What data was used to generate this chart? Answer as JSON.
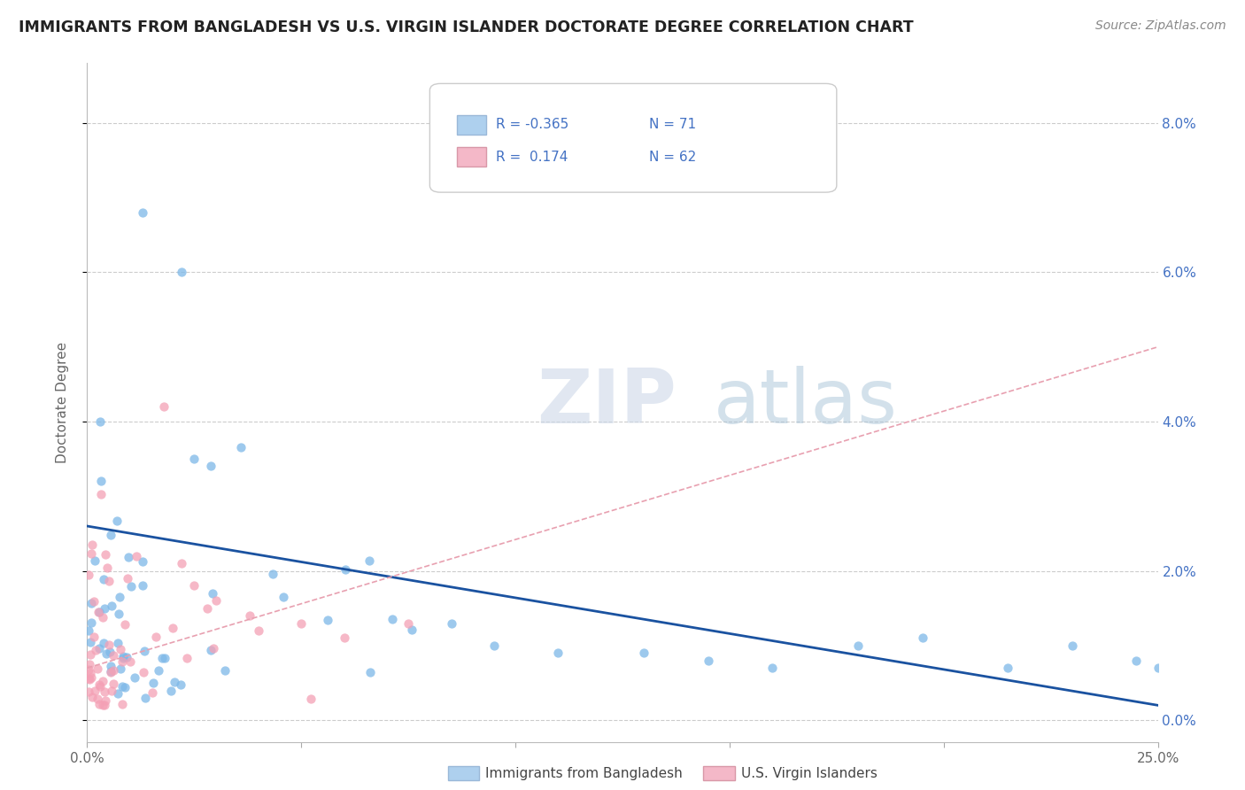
{
  "title": "IMMIGRANTS FROM BANGLADESH VS U.S. VIRGIN ISLANDER DOCTORATE DEGREE CORRELATION CHART",
  "source": "Source: ZipAtlas.com",
  "ylabel": "Doctorate Degree",
  "xmin": 0.0,
  "xmax": 0.25,
  "ymin": -0.003,
  "ymax": 0.088,
  "yticks": [
    0.0,
    0.02,
    0.04,
    0.06,
    0.08
  ],
  "ytick_labels": [
    "0.0%",
    "2.0%",
    "4.0%",
    "6.0%",
    "8.0%"
  ],
  "xtick_labels": [
    "0.0%",
    "",
    "",
    "",
    "",
    "25.0%"
  ],
  "xtick_vals": [
    0.0,
    0.05,
    0.1,
    0.15,
    0.2,
    0.25
  ],
  "bangladesh_color": "#7db8e8",
  "virgin_color": "#f4a0b5",
  "bangladesh_line_color": "#1a52a0",
  "virgin_line_color": "#e8a0b0",
  "legend_bd_color": "#aed0ee",
  "legend_vi_color": "#f4b8c8",
  "blue_text_color": "#4472c4",
  "background_color": "#ffffff",
  "grid_color": "#cccccc",
  "watermark_zip_color": "#d0d8e8",
  "watermark_atlas_color": "#a0c0d8",
  "bd_R": "-0.365",
  "bd_N": "71",
  "vi_R": "0.174",
  "vi_N": "62",
  "bd_line_start_y": 0.026,
  "bd_line_end_y": 0.002,
  "vi_line_start_y": 0.007,
  "vi_line_end_y": 0.05
}
